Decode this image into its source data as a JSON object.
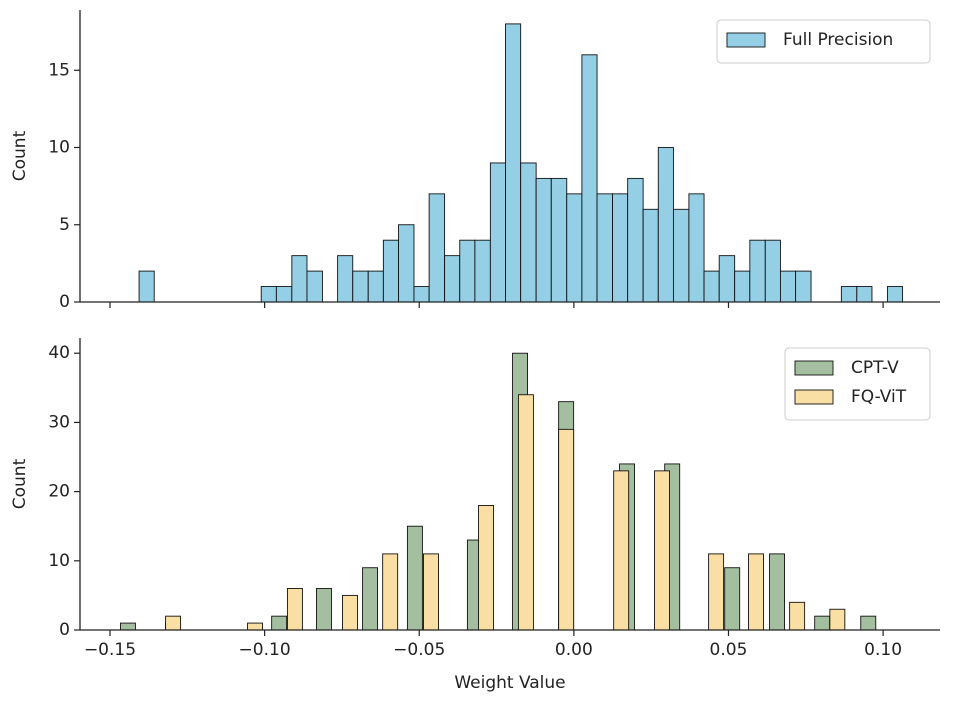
{
  "chart_data": [
    {
      "type": "histogram",
      "ylabel": "Count",
      "bins": [
        -0.1406,
        -0.1357,
        -0.1307,
        -0.1258,
        -0.1208,
        -0.1159,
        -0.111,
        -0.106,
        -0.1011,
        -0.0962,
        -0.0912,
        -0.0863,
        -0.0813,
        -0.0764,
        -0.0715,
        -0.0665,
        -0.0616,
        -0.0567,
        -0.0517,
        -0.0468,
        -0.0418,
        -0.0369,
        -0.032,
        -0.027,
        -0.0221,
        -0.0172,
        -0.0122,
        -0.0073,
        -0.0023,
        0.0026,
        0.0075,
        0.0125,
        0.0174,
        0.0224,
        0.0273,
        0.0322,
        0.0372,
        0.0421,
        0.047,
        0.052,
        0.0569,
        0.0619,
        0.0668,
        0.0717,
        0.0767,
        0.0816,
        0.0865,
        0.0915,
        0.0964,
        0.1014,
        0.1063
      ],
      "series": [
        {
          "name": "Full Precision",
          "color": "#95cfe6",
          "values": [
            2,
            0,
            0,
            0,
            0,
            0,
            0,
            0,
            1,
            1,
            3,
            2,
            0,
            3,
            2,
            2,
            4,
            5,
            1,
            7,
            3,
            4,
            4,
            9,
            18,
            9,
            8,
            8,
            7,
            16,
            7,
            7,
            8,
            6,
            10,
            6,
            7,
            2,
            3,
            2,
            4,
            4,
            2,
            2,
            0,
            0,
            1,
            1,
            0,
            1
          ]
        }
      ],
      "xlim": [
        -0.1597,
        0.1184
      ],
      "xticks": [
        -0.15,
        -0.1,
        -0.05,
        0,
        0.05,
        0.1
      ],
      "ylim": [
        0,
        18.9
      ],
      "yticks": [
        0,
        5,
        10,
        15
      ],
      "legend": "upper right"
    },
    {
      "type": "bar",
      "xlabel": "Weight Value",
      "ylabel": "Count",
      "series": [
        {
          "name": "CPT-V",
          "color": "#a3bfa0",
          "x": [
            -0.1442,
            -0.1296,
            -0.0953,
            -0.0808,
            -0.0659,
            -0.0514,
            -0.032,
            -0.0174,
            -0.0025,
            0.0172,
            0.0318,
            0.0512,
            0.0657,
            0.0803,
            0.0952
          ],
          "values": [
            1,
            1,
            2,
            6,
            9,
            15,
            13,
            40,
            33,
            24,
            24,
            9,
            11,
            2,
            2
          ]
        },
        {
          "name": "FQ-ViT",
          "color": "#f9dfa3",
          "x": [
            -0.1296,
            -0.1031,
            -0.0902,
            -0.0724,
            -0.0594,
            -0.0462,
            -0.0284,
            -0.0155,
            -0.0025,
            0.0153,
            0.0285,
            0.046,
            0.0589,
            0.0722,
            0.0852
          ],
          "values": [
            2,
            1,
            6,
            5,
            11,
            11,
            18,
            34,
            29,
            23,
            23,
            11,
            11,
            4,
            3
          ]
        }
      ],
      "xlim": [
        -0.1597,
        0.1184
      ],
      "xticks": [
        {
          "value": -0.15,
          "label": "−0.15"
        },
        {
          "value": -0.1,
          "label": "−0.10"
        },
        {
          "value": -0.05,
          "label": "−0.05"
        },
        {
          "value": 0,
          "label": "0.00"
        },
        {
          "value": 0.05,
          "label": "0.05"
        },
        {
          "value": 0.1,
          "label": "0.10"
        }
      ],
      "ylim": [
        0,
        42.2
      ],
      "yticks": [
        0,
        10,
        20,
        30,
        40
      ],
      "legend": "upper right"
    }
  ]
}
